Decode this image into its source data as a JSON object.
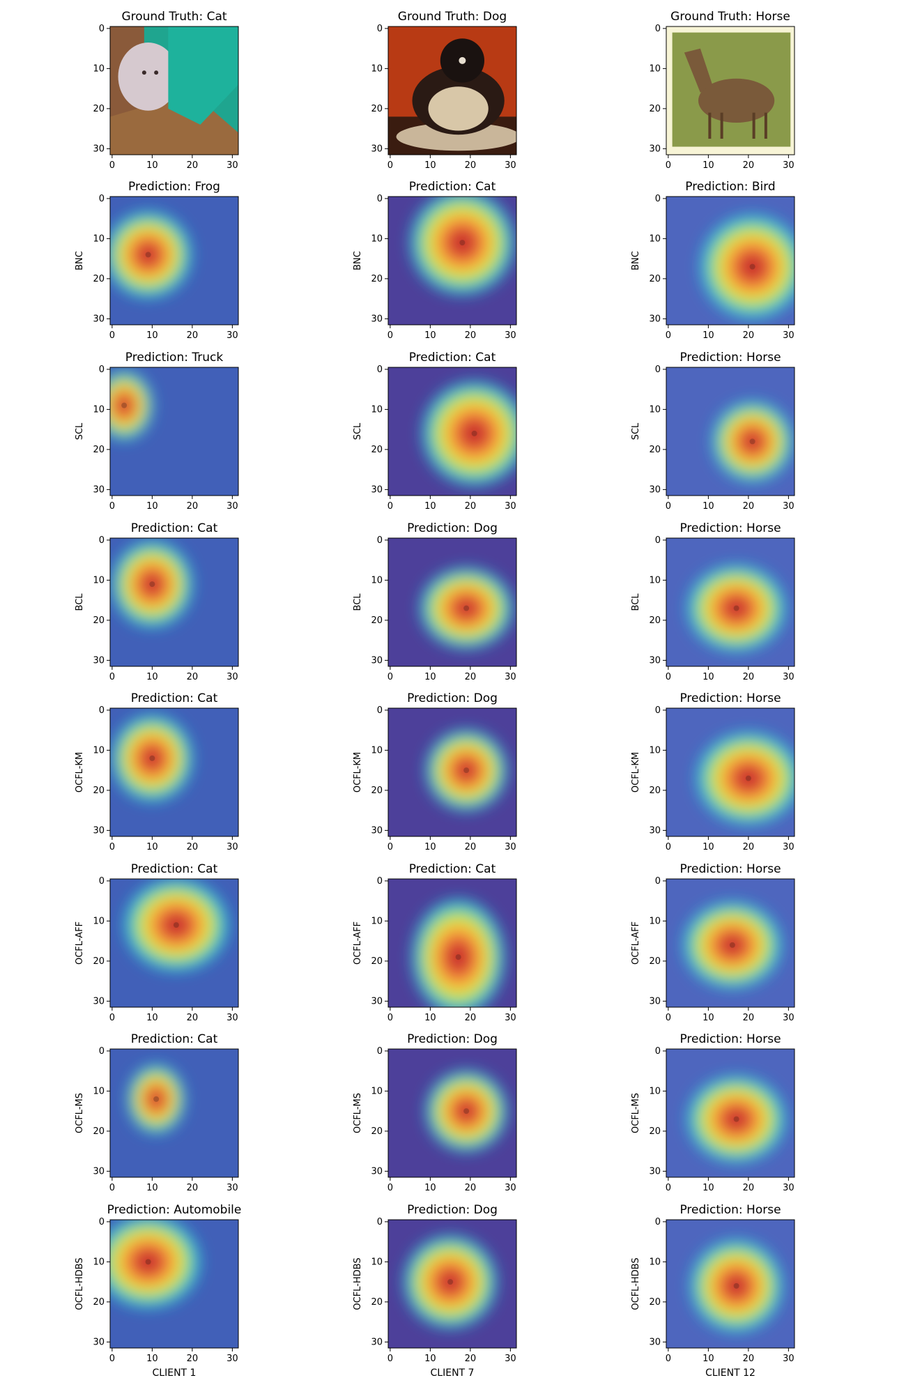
{
  "figure": {
    "column_labels": [
      "CLIENT 1",
      "CLIENT 7",
      "CLIENT 12"
    ],
    "row_labels": [
      "",
      "BNC",
      "SCL",
      "BCL",
      "OCFL-KM",
      "OCFL-AFF",
      "OCFL-MS",
      "OCFL-HDBS"
    ],
    "titles": [
      [
        "Ground Truth: Cat",
        "Ground Truth: Dog",
        "Ground Truth: Horse"
      ],
      [
        "Prediction: Frog",
        "Prediction: Cat",
        "Prediction: Bird"
      ],
      [
        "Prediction: Truck",
        "Prediction: Cat",
        "Prediction: Horse"
      ],
      [
        "Prediction: Cat",
        "Prediction: Dog",
        "Prediction: Horse"
      ],
      [
        "Prediction: Cat",
        "Prediction: Dog",
        "Prediction: Horse"
      ],
      [
        "Prediction: Cat",
        "Prediction: Cat",
        "Prediction: Horse"
      ],
      [
        "Prediction: Cat",
        "Prediction: Dog",
        "Prediction: Horse"
      ],
      [
        "Prediction: Automobile",
        "Prediction: Dog",
        "Prediction: Horse"
      ]
    ],
    "x_ticks": [
      "0",
      "10",
      "20",
      "30"
    ],
    "y_ticks": [
      "0",
      "10",
      "20",
      "30"
    ],
    "image_subjects": [
      "cat",
      "dog",
      "horse"
    ]
  },
  "colors": {
    "jet_low": "#00007f",
    "jet_high": "#7f0000",
    "cat_bg": "#1fa58f",
    "dog_bg": "#b83a14",
    "horse_bg": "#8a9a4a",
    "horse_frame": "#f7f4d6"
  }
}
